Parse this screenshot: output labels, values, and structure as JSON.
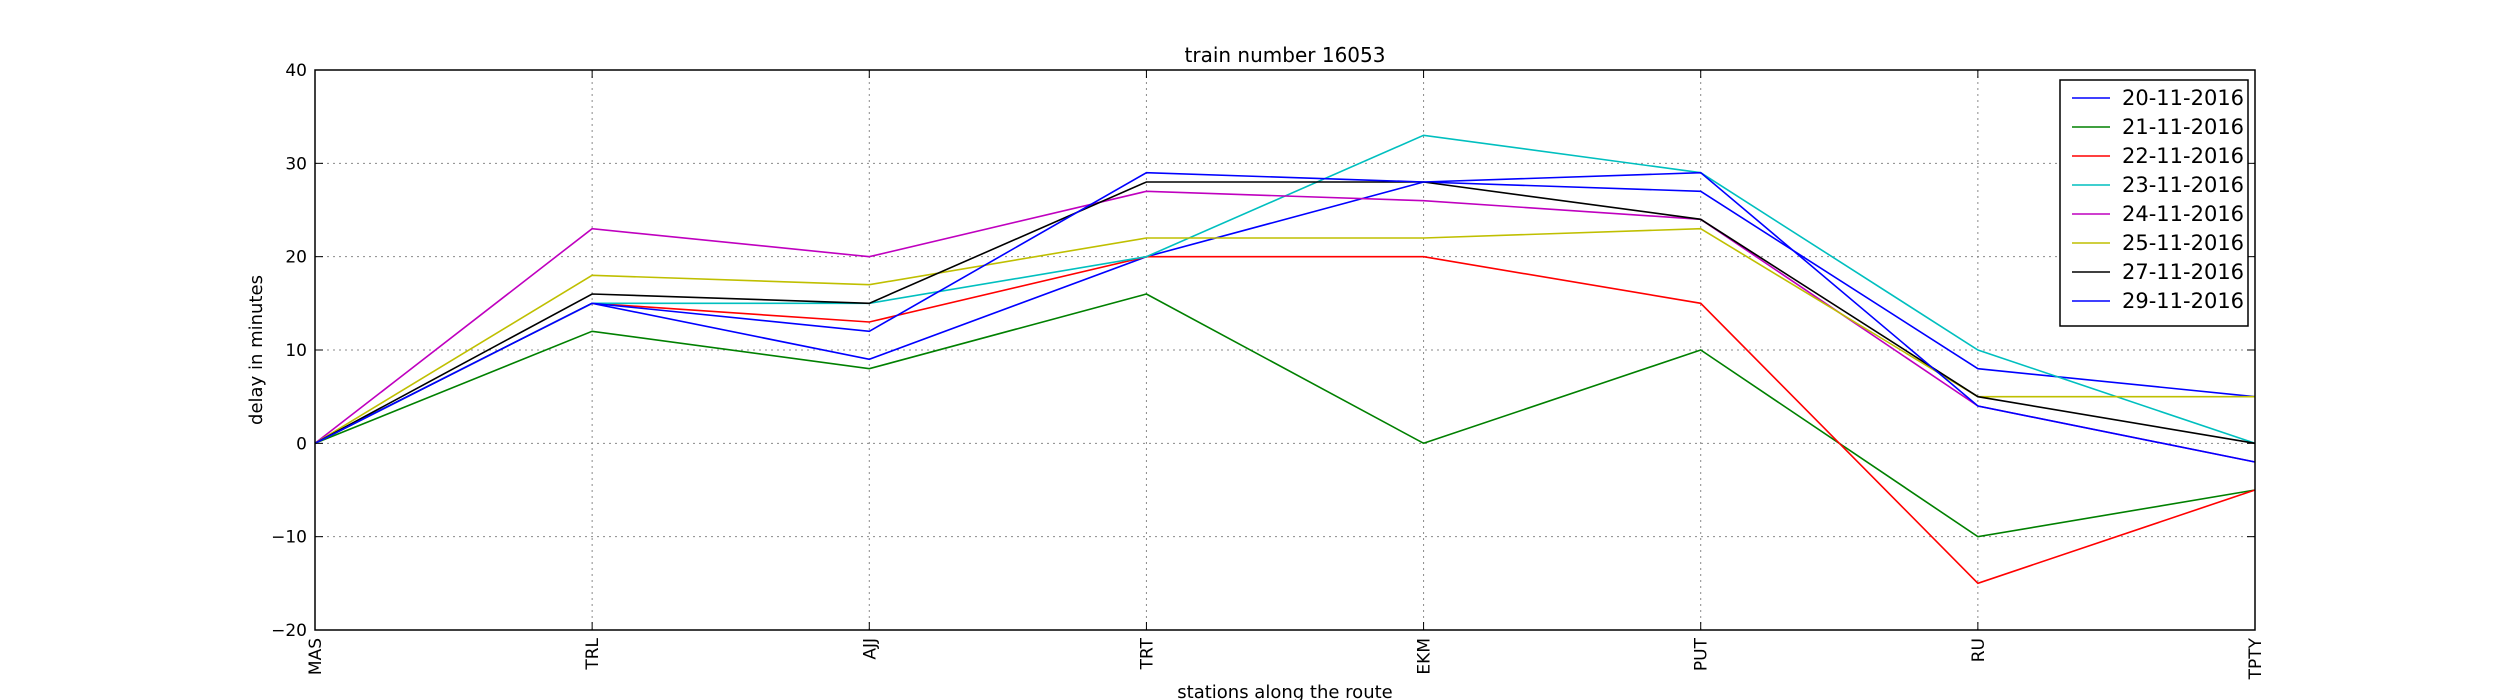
{
  "chart_data": {
    "type": "line",
    "title": "train number 16053",
    "xlabel": "stations along the route",
    "ylabel": "delay in minutes",
    "categories": [
      "MAS",
      "TRL",
      "AJJ",
      "TRT",
      "EKM",
      "PUT",
      "RU",
      "TPTY"
    ],
    "ylim": [
      -20,
      40
    ],
    "yticks": [
      -20,
      -10,
      0,
      10,
      20,
      30,
      40
    ],
    "grid": true,
    "legend_position": "top-right",
    "series": [
      {
        "name": "20-11-2016",
        "color": "#0000ff",
        "values": [
          0,
          15,
          9,
          20,
          28,
          27,
          8,
          5
        ]
      },
      {
        "name": "21-11-2016",
        "color": "#008000",
        "values": [
          0,
          12,
          8,
          16,
          0,
          10,
          -10,
          -5
        ]
      },
      {
        "name": "22-11-2016",
        "color": "#ff0000",
        "values": [
          0,
          15,
          13,
          20,
          20,
          15,
          -15,
          -5
        ]
      },
      {
        "name": "23-11-2016",
        "color": "#00bfbf",
        "values": [
          0,
          15,
          15,
          20,
          33,
          29,
          10,
          0
        ]
      },
      {
        "name": "24-11-2016",
        "color": "#bf00bf",
        "values": [
          0,
          23,
          20,
          27,
          26,
          24,
          4,
          -2
        ]
      },
      {
        "name": "25-11-2016",
        "color": "#bfbf00",
        "values": [
          0,
          18,
          17,
          22,
          22,
          23,
          5,
          5
        ]
      },
      {
        "name": "27-11-2016",
        "color": "#000000",
        "values": [
          0,
          16,
          15,
          28,
          28,
          24,
          5,
          0
        ]
      },
      {
        "name": "29-11-2016",
        "color": "#0000ff",
        "values": [
          0,
          15,
          12,
          29,
          28,
          29,
          4,
          -2
        ]
      }
    ]
  }
}
